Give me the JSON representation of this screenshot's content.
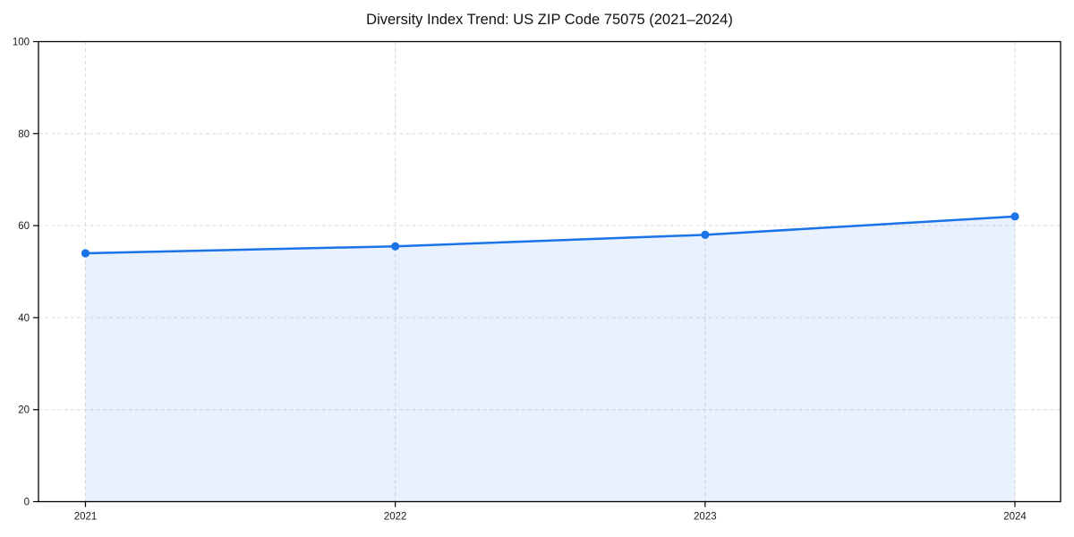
{
  "title": "Diversity Index Trend: US ZIP Code 75075 (2021–2024)",
  "chart_data": {
    "type": "line",
    "title": "Diversity Index Trend: US ZIP Code 75075 (2021–2024)",
    "categories": [
      "2021",
      "2022",
      "2023",
      "2024"
    ],
    "series": [
      {
        "name": "Diversity Index",
        "values": [
          54,
          55.5,
          58,
          62
        ]
      }
    ],
    "xlabel": "",
    "ylabel": "",
    "ylim": [
      0,
      100
    ],
    "yticks": [
      0,
      20,
      40,
      60,
      80,
      100
    ],
    "grid": true,
    "grid_style": "dashed",
    "legend_position": "none",
    "area_fill": true,
    "marker": "circle",
    "colors": {
      "line": "#1a73e8",
      "marker": "#1a73e8",
      "fill": "#1a73e8",
      "fill_opacity": 0.1,
      "grid": "#dcdcdc",
      "axis": "#000000",
      "tick_label": "#1a1a1a",
      "title": "#111111",
      "background": "#ffffff"
    }
  }
}
